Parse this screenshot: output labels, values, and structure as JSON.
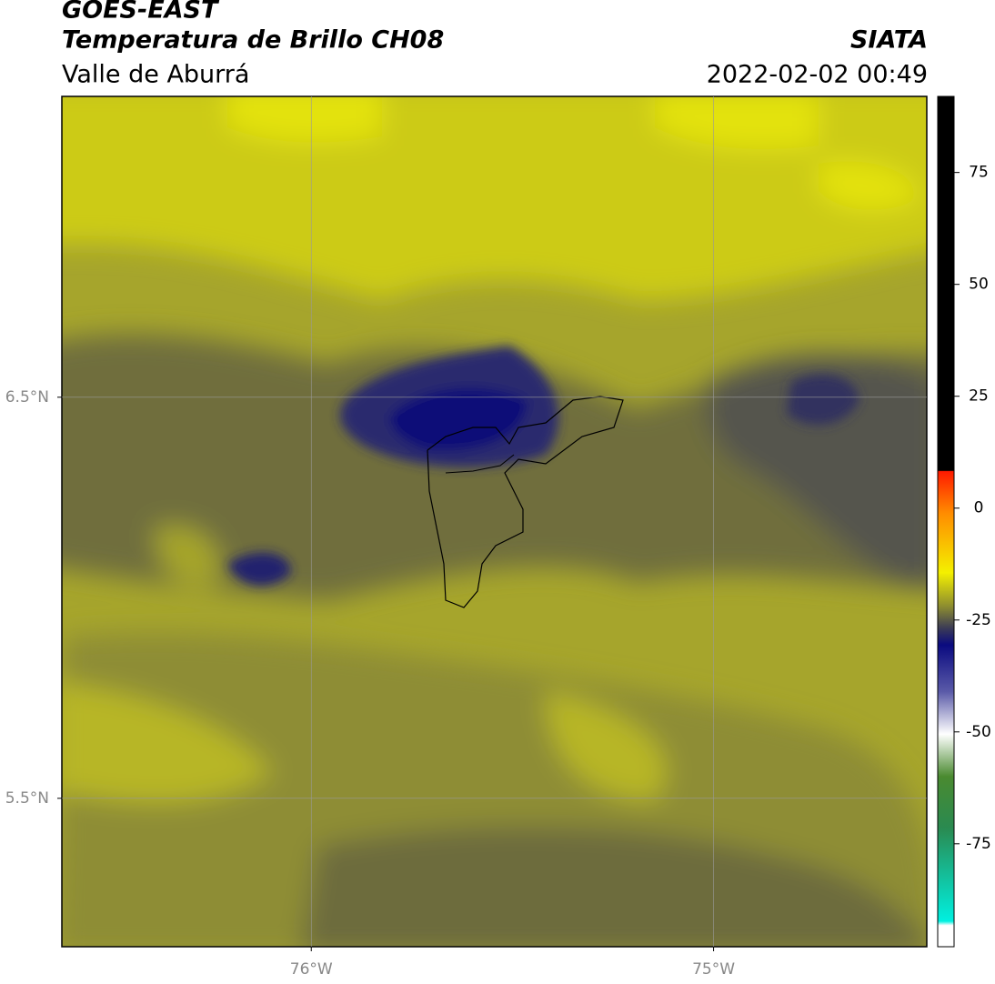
{
  "header": {
    "title": "GOES-EAST",
    "subtitle": "Temperatura de Brillo CH08",
    "region": "Valle de Aburrá",
    "source": "SIATA",
    "datetime": "2022-02-02 00:49"
  },
  "map": {
    "lonlim": [
      -76.62,
      -74.47
    ],
    "latlim": [
      5.13,
      7.25
    ],
    "lat_ticks": [
      {
        "value": 6.5,
        "label": "6.5°N"
      },
      {
        "value": 5.5,
        "label": "5.5°N"
      }
    ],
    "lon_ticks": [
      {
        "value": -76,
        "label": "76°W"
      },
      {
        "value": -75,
        "label": "75°W"
      }
    ]
  },
  "colorbar": {
    "lim": [
      -98,
      92
    ],
    "ticks": [
      75,
      50,
      25,
      0,
      -25,
      -50,
      -75
    ]
  }
}
